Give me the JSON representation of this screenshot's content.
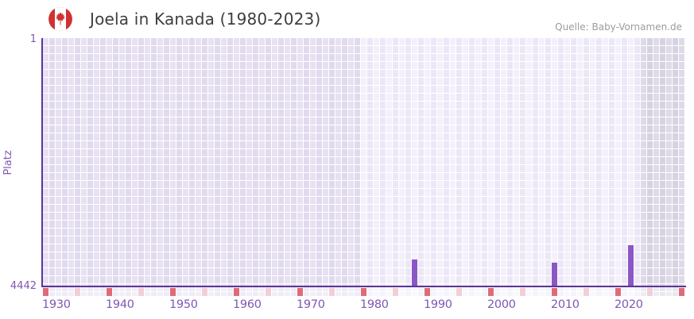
{
  "header": {
    "title": "Joela in Kanada (1980-2023)",
    "flag_icon": "canada-flag-icon",
    "source": "Quelle: Baby-Vornamen.de"
  },
  "chart_data": {
    "type": "bar",
    "title": "Joela in Kanada (1980-2023)",
    "ylabel": "Platz",
    "y_axis": {
      "top_tick": "1",
      "bottom_tick": "4442",
      "min": 1,
      "max": 4442,
      "inverted": true
    },
    "x_axis": {
      "first_year": 1930,
      "last_year": 2030,
      "tick_labels": [
        "1930",
        "1940",
        "1950",
        "1960",
        "1970",
        "1980",
        "1990",
        "2000",
        "2010",
        "2020"
      ],
      "decade_tick_years": [
        1930,
        1940,
        1950,
        1960,
        1970,
        1980,
        1990,
        2000,
        2010,
        2020,
        2030
      ],
      "half_decade_tick_years": [
        1935,
        1945,
        1955,
        1965,
        1975,
        1985,
        1995,
        2005,
        2015,
        2025
      ]
    },
    "highlight_range": {
      "from": 1980,
      "to": 2023
    },
    "dimmed_range": {
      "from": 2024,
      "to": 2030
    },
    "grid": true,
    "legend": "none",
    "series": [
      {
        "name": "Platz",
        "points": [
          {
            "year": 1988,
            "rank": 3970
          },
          {
            "year": 2010,
            "rank": 4030
          },
          {
            "year": 2022,
            "rank": 3710
          }
        ]
      }
    ],
    "colors": {
      "bar-color": "#8b57c6",
      "axis-color": "#5b3597",
      "tick-color": "#7e57b4",
      "decade-tick-color": "#df6b78",
      "half-decade-tick-color": "#f3ced9",
      "title-color": "#3e3e42",
      "source-color": "#9c9c9c",
      "flag-red": "#d03333",
      "z1a": "#e7e1f2",
      "z1b": "#e1daee",
      "z2a": "#f4f0fb",
      "z2b": "#ece7f7",
      "z3a": "#dedae8",
      "z3b": "#d7d2e2"
    }
  }
}
